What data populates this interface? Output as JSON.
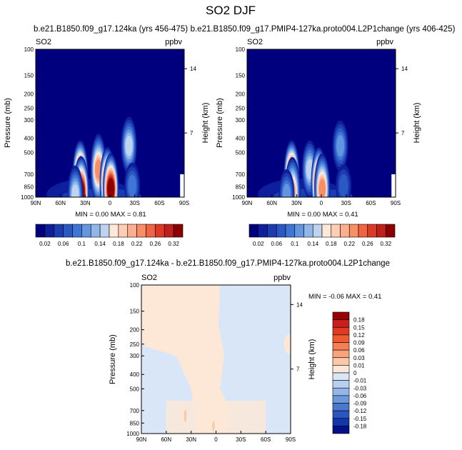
{
  "figure_title": "SO2 DJF",
  "chart_data": [
    {
      "type": "heatmap",
      "title": "b.e21.B1850.f09_g17.124ka (yrs 456-475)",
      "variable_label": "SO2",
      "units_label": "ppbv",
      "xlabel": "",
      "ylabel": "Pressure (mb)",
      "y2label": "Height (km)",
      "x_ticks": [
        "90N",
        "60N",
        "30N",
        "0",
        "30S",
        "60S",
        "90S"
      ],
      "x_range": [
        90,
        -90
      ],
      "y_ticks": [
        "100",
        "150",
        "200",
        "250",
        "300",
        "400",
        "500",
        "700",
        "850",
        "1000"
      ],
      "y_range_mb": [
        1000,
        100
      ],
      "y_scale": "log",
      "y2_ticks": [
        "14",
        "7"
      ],
      "min_max_text": "MIN =   0.00   MAX =   0.81",
      "min": 0.0,
      "max": 0.81,
      "background_value": 0.02,
      "plumes": [
        {
          "lat": 36,
          "p": 720,
          "peak": 0.6
        },
        {
          "lat": 35,
          "p": 920,
          "peak": 0.35
        },
        {
          "lat": 42,
          "p": 960,
          "peak": 0.14
        },
        {
          "lat": 14,
          "p": 650,
          "peak": 0.22
        },
        {
          "lat": 3,
          "p": 800,
          "peak": 0.8
        },
        {
          "lat": -1,
          "p": 880,
          "peak": 0.4
        },
        {
          "lat": -23,
          "p": 450,
          "peak": 0.14
        },
        {
          "lat": -27,
          "p": 840,
          "peak": 0.08
        }
      ],
      "colorbar": {
        "orientation": "horizontal",
        "colors": [
          "#00007f",
          "#0d1f9c",
          "#1c3cb0",
          "#2b59c4",
          "#3f76d6",
          "#6495e0",
          "#91b7e8",
          "#bdd3f0",
          "#ffe8d6",
          "#fdcdb4",
          "#fbaf8e",
          "#f88e67",
          "#f06344",
          "#dc3a26",
          "#c0201a",
          "#8b0000"
        ],
        "ticks": [
          "0.02",
          "0.06",
          "0.1",
          "0.14",
          "0.18",
          "0.22",
          "0.26",
          "0.32"
        ]
      }
    },
    {
      "type": "heatmap",
      "title": "b.e21.B1850.f09_g17.PMIP4-127ka.proto004.L2P1change (yrs 406-425)",
      "variable_label": "SO2",
      "units_label": "ppbv",
      "xlabel": "",
      "ylabel": "Pressure (mb)",
      "y2label": "Height (km)",
      "x_ticks": [
        "90N",
        "60N",
        "30N",
        "0",
        "30S",
        "60S",
        "90S"
      ],
      "x_range": [
        90,
        -90
      ],
      "y_ticks": [
        "100",
        "150",
        "200",
        "250",
        "300",
        "400",
        "500",
        "700",
        "850",
        "1000"
      ],
      "y_range_mb": [
        1000,
        100
      ],
      "y_scale": "log",
      "y2_ticks": [
        "14",
        "7"
      ],
      "min_max_text": "MIN =   0.00   MAX =   0.41",
      "min": 0.0,
      "max": 0.41,
      "background_value": 0.02,
      "plumes": [
        {
          "lat": 36,
          "p": 720,
          "peak": 0.35
        },
        {
          "lat": 35,
          "p": 920,
          "peak": 0.2
        },
        {
          "lat": 42,
          "p": 960,
          "peak": 0.1
        },
        {
          "lat": 14,
          "p": 650,
          "peak": 0.14
        },
        {
          "lat": 3,
          "p": 800,
          "peak": 0.4
        },
        {
          "lat": -1,
          "p": 880,
          "peak": 0.22
        },
        {
          "lat": -23,
          "p": 450,
          "peak": 0.1
        },
        {
          "lat": -27,
          "p": 840,
          "peak": 0.06
        }
      ],
      "colorbar": {
        "orientation": "horizontal",
        "colors": [
          "#00007f",
          "#0d1f9c",
          "#1c3cb0",
          "#2b59c4",
          "#3f76d6",
          "#6495e0",
          "#91b7e8",
          "#bdd3f0",
          "#ffe8d6",
          "#fdcdb4",
          "#fbaf8e",
          "#f88e67",
          "#f06344",
          "#dc3a26",
          "#c0201a",
          "#8b0000"
        ],
        "ticks": [
          "0.02",
          "0.06",
          "0.1",
          "0.14",
          "0.18",
          "0.22",
          "0.26",
          "0.32"
        ]
      }
    },
    {
      "type": "heatmap",
      "title": "b.e21.B1850.f09_g17.124ka - b.e21.B1850.f09_g17.PMIP4-127ka.proto004.L2P1change",
      "variable_label": "SO2",
      "units_label": "ppbv",
      "xlabel": "",
      "ylabel": "Pressure (mb)",
      "y2label": "Height (km)",
      "x_ticks": [
        "90N",
        "60N",
        "30N",
        "0",
        "30S",
        "60S",
        "90S"
      ],
      "x_range": [
        90,
        -90
      ],
      "y_ticks": [
        "100",
        "150",
        "200",
        "250",
        "300",
        "400",
        "500",
        "700",
        "850",
        "1000"
      ],
      "y_range_mb": [
        1000,
        100
      ],
      "y_scale": "log",
      "y2_ticks": [
        "14",
        "7"
      ],
      "min_max_text": "MIN =  -0.06   MAX =   0.41",
      "min": -0.06,
      "max": 0.41,
      "regions": {
        "positive_color": "#fde8d8",
        "negative_color": "#d8e6f7",
        "strong_positive_color": "#fbc8a8",
        "positive_upper_lat_range": [
          82,
          -5
        ],
        "positive_upper_p_top": 100,
        "positive_upper_p_bottom": 270,
        "positive_lower_band_lat_range": [
          30,
          -18
        ],
        "negative_background": true
      },
      "colorbar": {
        "orientation": "vertical",
        "colors": [
          "#9b0000",
          "#c81e1e",
          "#e03a22",
          "#f05a30",
          "#f57f52",
          "#f8a37b",
          "#fbc8a8",
          "#fde8d8",
          "#d8e6f7",
          "#b8d0f0",
          "#94b6e6",
          "#6f97dc",
          "#4a78cf",
          "#2a57bf",
          "#1237a8",
          "#00108a"
        ],
        "ticks": [
          "0.18",
          "0.15",
          "0.12",
          "0.09",
          "0.06",
          "0.03",
          "0.01",
          "0",
          "-0.01",
          "-0.03",
          "-0.06",
          "-0.09",
          "-0.12",
          "-0.15",
          "-0.18"
        ]
      }
    }
  ]
}
